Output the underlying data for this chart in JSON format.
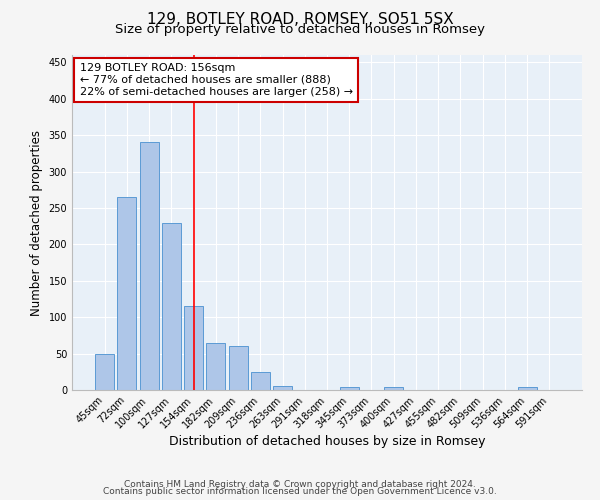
{
  "title1": "129, BOTLEY ROAD, ROMSEY, SO51 5SX",
  "title2": "Size of property relative to detached houses in Romsey",
  "xlabel": "Distribution of detached houses by size in Romsey",
  "ylabel": "Number of detached properties",
  "categories": [
    "45sqm",
    "72sqm",
    "100sqm",
    "127sqm",
    "154sqm",
    "182sqm",
    "209sqm",
    "236sqm",
    "263sqm",
    "291sqm",
    "318sqm",
    "345sqm",
    "373sqm",
    "400sqm",
    "427sqm",
    "455sqm",
    "482sqm",
    "509sqm",
    "536sqm",
    "564sqm",
    "591sqm"
  ],
  "values": [
    50,
    265,
    340,
    230,
    115,
    65,
    60,
    25,
    5,
    0,
    0,
    4,
    0,
    4,
    0,
    0,
    0,
    0,
    0,
    4,
    0
  ],
  "bar_color": "#aec6e8",
  "bar_edge_color": "#5b9bd5",
  "red_line_index": 4,
  "annotation_lines": [
    "129 BOTLEY ROAD: 156sqm",
    "← 77% of detached houses are smaller (888)",
    "22% of semi-detached houses are larger (258) →"
  ],
  "annotation_box_color": "#ffffff",
  "annotation_box_edge_color": "#cc0000",
  "plot_bg_color": "#e8f0f8",
  "fig_bg_color": "#f5f5f5",
  "grid_color": "#ffffff",
  "ylim": [
    0,
    460
  ],
  "yticks": [
    0,
    50,
    100,
    150,
    200,
    250,
    300,
    350,
    400,
    450
  ],
  "footnote1": "Contains HM Land Registry data © Crown copyright and database right 2024.",
  "footnote2": "Contains public sector information licensed under the Open Government Licence v3.0.",
  "title1_fontsize": 11,
  "title2_fontsize": 9.5,
  "xlabel_fontsize": 9,
  "ylabel_fontsize": 8.5,
  "tick_fontsize": 7,
  "annotation_fontsize": 8,
  "footnote_fontsize": 6.5
}
